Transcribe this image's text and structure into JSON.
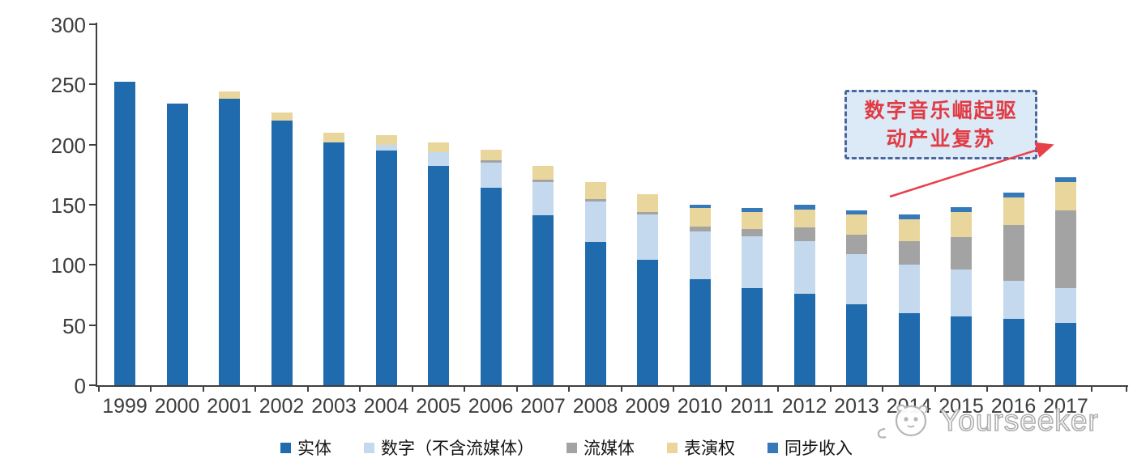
{
  "chart_data": {
    "type": "bar",
    "stacked": true,
    "title": "",
    "xlabel": "",
    "ylabel": "",
    "categories": [
      "1999",
      "2000",
      "2001",
      "2002",
      "2003",
      "2004",
      "2005",
      "2006",
      "2007",
      "2008",
      "2009",
      "2010",
      "2011",
      "2012",
      "2013",
      "2014",
      "2015",
      "2016",
      "2017"
    ],
    "series": [
      {
        "key": "physical",
        "name": "实体",
        "color": "#1f6bad",
        "values": [
          252,
          234,
          238,
          220,
          202,
          195,
          182,
          164,
          141,
          119,
          104,
          88,
          81,
          76,
          67,
          60,
          57,
          55,
          52
        ]
      },
      {
        "key": "digital-excl-streaming",
        "name": "数字（不含流媒体）",
        "color": "#c5d9ee",
        "values": [
          0,
          0,
          0,
          0,
          0,
          5,
          12,
          21,
          28,
          34,
          38,
          40,
          43,
          44,
          42,
          40,
          39,
          32,
          29
        ]
      },
      {
        "key": "streaming",
        "name": "流媒体",
        "color": "#a3a3a3",
        "values": [
          0,
          0,
          0,
          0,
          0,
          0,
          0,
          2,
          2,
          2,
          2,
          4,
          6,
          11,
          16,
          20,
          27,
          46,
          64
        ]
      },
      {
        "key": "performance-rights",
        "name": "表演权",
        "color": "#e9d69c",
        "values": [
          0,
          0,
          6,
          7,
          8,
          8,
          8,
          9,
          11,
          14,
          15,
          15,
          14,
          15,
          17,
          18,
          21,
          23,
          24
        ]
      },
      {
        "key": "sync-revenue",
        "name": "同步收入",
        "color": "#3579bb",
        "values": [
          0,
          0,
          0,
          0,
          0,
          0,
          0,
          0,
          0,
          0,
          0,
          3,
          3,
          4,
          3,
          4,
          4,
          4,
          4
        ]
      }
    ],
    "ylim": [
      0,
      300
    ],
    "yticks": [
      0,
      50,
      100,
      150,
      200,
      250,
      300
    ],
    "legend_position": "bottom",
    "grid": false
  },
  "annotation": {
    "line1": "数字音乐崛起驱",
    "line2": "动产业复苏",
    "text_color": "#e13b44",
    "border_color": "#4a689e",
    "fill_color": "#dce9f7",
    "arrow_color": "#e8404a"
  },
  "watermark": {
    "text": "Yourseeker",
    "logo": "mascot-face-icon"
  }
}
